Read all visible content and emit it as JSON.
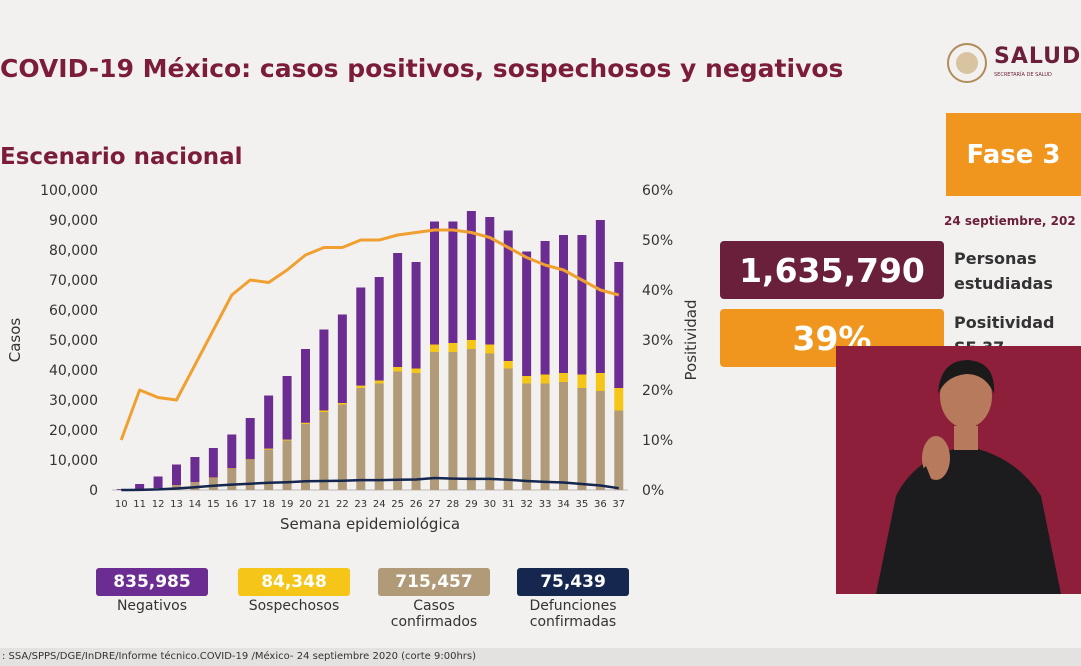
{
  "header": {
    "title": "COVID-19 México: casos positivos, sospechosos y negativos",
    "logo": "SALUD",
    "logo_subtitle": "SECRETARÍA DE SALUD"
  },
  "panel": {
    "phase": "Fase 3",
    "date": "24 septiembre, 202",
    "studied_value": "1,635,790",
    "studied_label": "Personas estudiadas",
    "positivity_value": "39%",
    "positivity_label": "Positividad SE 37"
  },
  "footer": ": SSA/SPPS/DGE/InDRE/Informe técnico.COVID-19 /México- 24 septiembre 2020 (corte 9:00hrs)",
  "chart_data": {
    "type": "bar",
    "title": "Escenario nacional",
    "x_label": "Semana epidemiológica",
    "y_label": "Casos",
    "y2_label": "Positividad",
    "categories": [
      "10",
      "11",
      "12",
      "13",
      "14",
      "15",
      "16",
      "17",
      "18",
      "19",
      "20",
      "21",
      "22",
      "23",
      "24",
      "25",
      "26",
      "27",
      "28",
      "29",
      "30",
      "31",
      "32",
      "33",
      "34",
      "35",
      "36",
      "37"
    ],
    "ylim": [
      0,
      100000
    ],
    "yticks": [
      0,
      {
        "value": 10000,
        "label": "10,000"
      },
      {
        "value": 20000,
        "label": "20,000"
      },
      {
        "value": 30000,
        "label": "30,000"
      },
      {
        "value": 40000,
        "label": "40,000"
      },
      {
        "value": 50000,
        "label": "50,000"
      },
      {
        "value": 60000,
        "label": "60,000"
      },
      {
        "value": 70000,
        "label": "70,000"
      },
      {
        "value": 80000,
        "label": "80,000"
      },
      {
        "value": 90000,
        "label": "90,000"
      },
      {
        "value": 100000,
        "label": "100,000"
      }
    ],
    "y2lim": [
      0,
      60
    ],
    "y2ticks": [
      {
        "value": 0,
        "label": "0%"
      },
      {
        "value": 10,
        "label": "10%"
      },
      {
        "value": 20,
        "label": "20%"
      },
      {
        "value": 30,
        "label": "30%"
      },
      {
        "value": 40,
        "label": "40%"
      },
      {
        "value": 50,
        "label": "50%"
      },
      {
        "value": 60,
        "label": "60%"
      }
    ],
    "series": [
      {
        "name": "Negativos",
        "type": "bar",
        "color": "#6b2d91",
        "total": "835,985",
        "values": [
          270,
          1800,
          3850,
          6900,
          8400,
          9850,
          11300,
          13800,
          17700,
          21200,
          24600,
          27000,
          29500,
          32700,
          34500,
          38000,
          35500,
          41000,
          40500,
          43000,
          42500,
          43500,
          41500,
          44500,
          46000,
          46500,
          51000,
          42000
        ]
      },
      {
        "name": "Sospechosos",
        "type": "bar",
        "color": "#f5c518",
        "total": "84,348",
        "values": [
          0,
          0,
          50,
          100,
          100,
          150,
          200,
          200,
          300,
          300,
          400,
          500,
          500,
          800,
          1000,
          1500,
          1500,
          2500,
          3000,
          3000,
          3000,
          2500,
          2500,
          3000,
          3000,
          4500,
          6000,
          7500
        ]
      },
      {
        "name": "Casos confirmados",
        "type": "bar",
        "color": "#b09a78",
        "total": "715,457",
        "values": [
          30,
          200,
          600,
          1500,
          2500,
          4000,
          7000,
          10000,
          13500,
          16500,
          22000,
          26000,
          28500,
          34000,
          35500,
          39500,
          39000,
          46000,
          46000,
          47000,
          45500,
          40500,
          35500,
          35500,
          36000,
          34000,
          33000,
          26500
        ]
      },
      {
        "name": "Defunciones confirmadas",
        "type": "line",
        "color": "#15264f",
        "total": "75,439",
        "values": [
          0,
          50,
          200,
          500,
          900,
          1400,
          1800,
          2100,
          2400,
          2600,
          2900,
          3000,
          3100,
          3300,
          3300,
          3400,
          3500,
          4000,
          3800,
          3700,
          3700,
          3400,
          3000,
          2700,
          2500,
          2000,
          1500,
          600
        ]
      },
      {
        "type": "line",
        "axis": "y2",
        "color": "#f0a030",
        "values": [
          10,
          20,
          18.5,
          18,
          25,
          32,
          39,
          42,
          41.5,
          44,
          47,
          48.5,
          48.5,
          50,
          50,
          51,
          51.5,
          52,
          52,
          51.5,
          50.5,
          48.5,
          46.5,
          45,
          44,
          42,
          40,
          39
        ]
      }
    ]
  }
}
